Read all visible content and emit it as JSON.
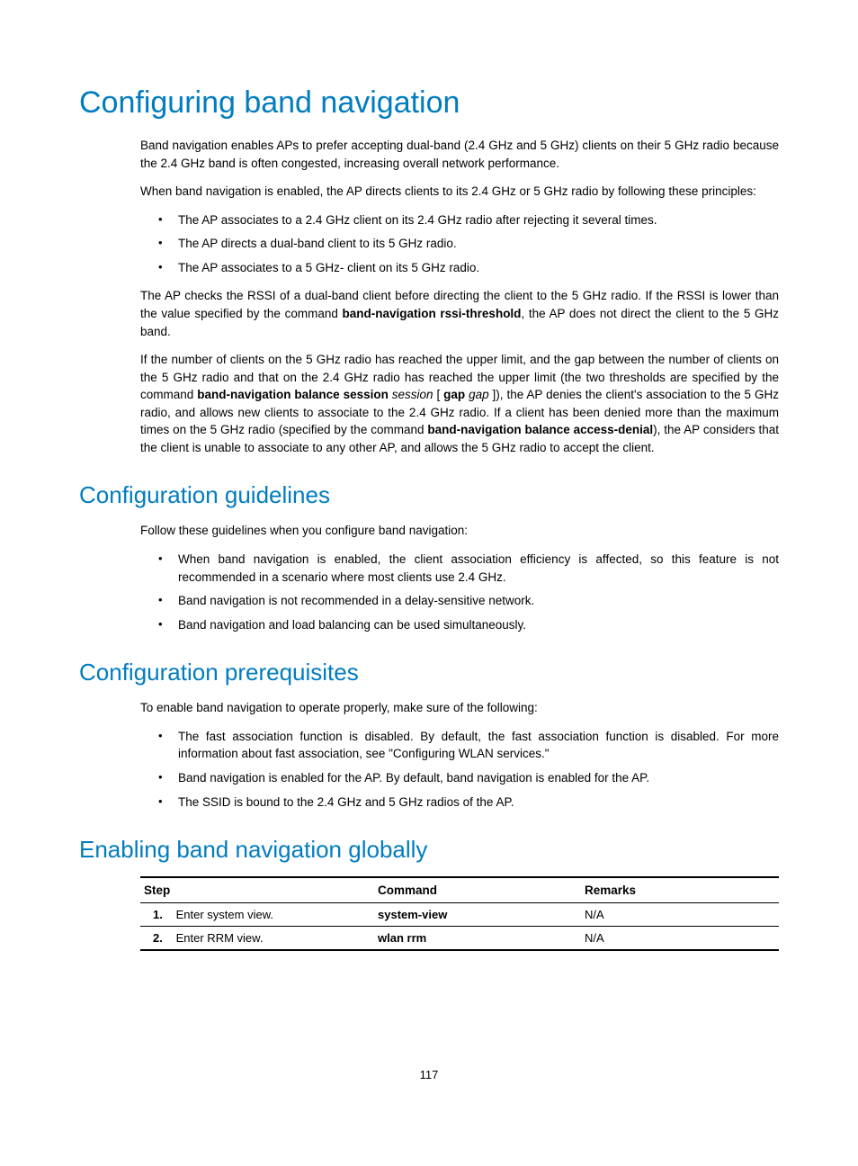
{
  "title": "Configuring band navigation",
  "intro_p1": "Band navigation enables APs to prefer accepting dual-band (2.4 GHz and 5 GHz) clients on their 5 GHz radio because the 2.4 GHz band is often congested, increasing overall network performance.",
  "intro_p2": "When band navigation is enabled, the AP directs clients to its 2.4 GHz or 5 GHz radio by following these principles:",
  "intro_bullets": [
    "The AP associates to a 2.4 GHz client on its 2.4 GHz radio after rejecting it several times.",
    "The AP directs a dual-band client to its 5 GHz radio.",
    "The AP associates to a 5 GHz- client on its 5 GHz radio."
  ],
  "intro_p3_pre": "The AP checks the RSSI of a dual-band client before directing the client to the 5 GHz radio. If the RSSI is lower than the value specified by the command ",
  "intro_p3_bold1": "band-navigation rssi-threshold",
  "intro_p3_post": ", the AP does not direct the client to the 5 GHz band.",
  "intro_p4_a": "If the number of clients on the 5 GHz radio has reached the upper limit, and the gap between the number of clients on the 5 GHz radio and that on the 2.4 GHz radio has reached the upper limit (the two thresholds are specified by the command ",
  "intro_p4_b1": "band-navigation balance session",
  "intro_p4_i1": " session ",
  "intro_p4_b2": "[ ",
  "intro_p4_b3": "gap",
  "intro_p4_i2": " gap ",
  "intro_p4_b4": "]",
  "intro_p4_c": "), the AP denies the client's association to the 5 GHz radio, and allows new clients to associate to the 2.4 GHz radio. If a client has been denied more than the maximum times on the 5 GHz radio (specified by the command ",
  "intro_p4_b5": "band-navigation balance access-denial",
  "intro_p4_d": "), the AP considers that the client is unable to associate to any other AP, and allows the 5 GHz radio to accept the client.",
  "guidelines": {
    "title": "Configuration guidelines",
    "lead": "Follow these guidelines when you configure band navigation:",
    "bullets": [
      "When band navigation is enabled, the client association efficiency is affected, so this feature is not recommended in a scenario where most clients use 2.4 GHz.",
      "Band navigation is not recommended in a delay-sensitive network.",
      "Band navigation and load balancing can be used simultaneously."
    ]
  },
  "prereq": {
    "title": "Configuration prerequisites",
    "lead": "To enable band navigation to operate properly, make sure of the following:",
    "bullets": [
      "The fast association function is disabled. By default, the fast association function is disabled. For more information about fast association, see \"Configuring WLAN services.\"",
      "Band navigation is enabled for the AP. By default, band navigation is enabled for the AP.",
      "The SSID is bound to the 2.4 GHz and 5 GHz radios of the AP."
    ]
  },
  "enabling": {
    "title": "Enabling band navigation globally",
    "table": {
      "headers": {
        "step": "Step",
        "command": "Command",
        "remarks": "Remarks"
      },
      "rows": [
        {
          "num": "1.",
          "step": "Enter system view.",
          "command": "system-view",
          "remarks": "N/A"
        },
        {
          "num": "2.",
          "step": "Enter RRM view.",
          "command": "wlan rrm",
          "remarks": "N/A"
        }
      ],
      "col_widths": {
        "step": "260px",
        "command": "230px",
        "remarks": "220px"
      }
    }
  },
  "page_number": "117",
  "colors": {
    "heading": "#007cc0",
    "text": "#000000",
    "background": "#ffffff"
  }
}
